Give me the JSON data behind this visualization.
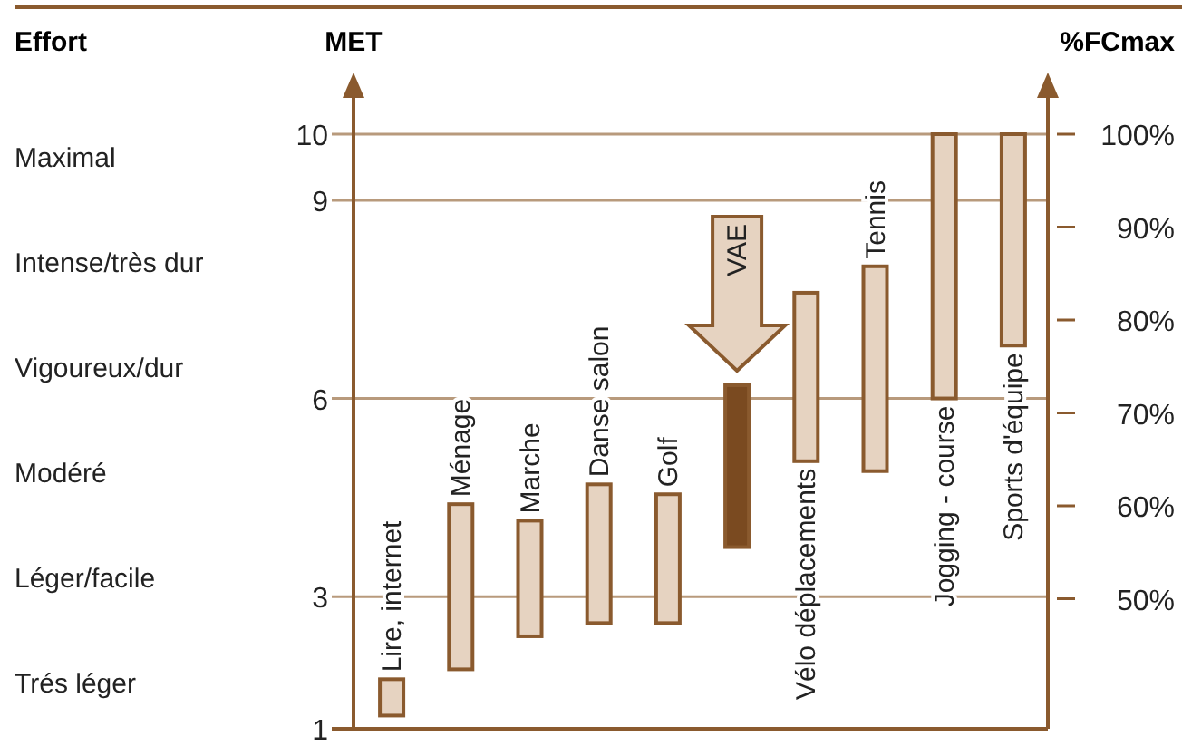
{
  "chart_data": {
    "type": "bar",
    "ylabel": "MET",
    "y2label": "%FCmax",
    "categories": [
      "Lire, internet",
      "Ménage",
      "Marche",
      "Danse salon",
      "Golf",
      "VAE",
      "Vélo déplacements",
      "Tennis",
      "Jogging - course",
      "Sports d'équipe"
    ],
    "series": [
      {
        "color": "#e6d3c1",
        "colors": [
          "#e6d3c1",
          "#e6d3c1",
          "#e6d3c1",
          "#e6d3c1",
          "#e6d3c1",
          "#7a4a20",
          "#e6d3c1",
          "#e6d3c1",
          "#e6d3c1",
          "#e6d3c1"
        ],
        "base": [
          1.2,
          1.9,
          2.4,
          2.6,
          2.6,
          3.75,
          5.05,
          4.9,
          6,
          6.8
        ],
        "values": [
          0.55,
          2.5,
          1.75,
          2.1,
          1.95,
          2.45,
          2.55,
          3.1,
          4,
          3.2
        ]
      }
    ],
    "ylim": [
      1,
      10
    ],
    "yticks": [
      1,
      3,
      6,
      9,
      10
    ],
    "y2lim": [
      36,
      100
    ],
    "y2ticks": [
      {
        "value": 50,
        "label": "50%"
      },
      {
        "value": 60,
        "label": "60%"
      },
      {
        "value": 70,
        "label": "70%"
      },
      {
        "value": 80,
        "label": "80%"
      },
      {
        "value": 90,
        "label": "90%"
      },
      {
        "value": 100,
        "label": "100%"
      }
    ],
    "grid": "y",
    "annotations": [
      "Effort",
      "Maximal",
      "Intense/très dur",
      "Vigoureux/dur",
      "Modéré",
      "Léger/facile",
      "Trés léger"
    ]
  }
}
